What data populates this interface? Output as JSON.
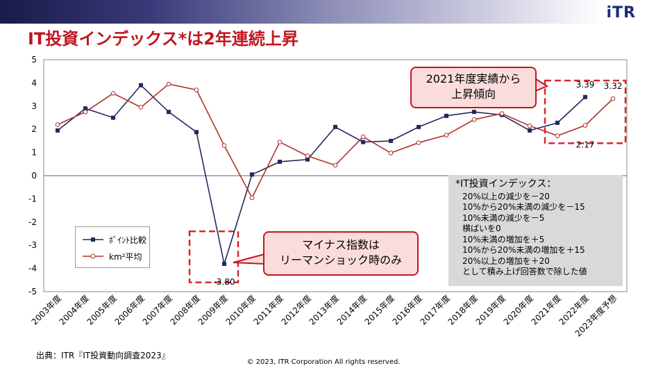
{
  "header": {
    "title": "IT投資インデックス*は2年連続上昇",
    "logo": "iTR"
  },
  "chart_data": {
    "type": "line",
    "categories": [
      "2003年度",
      "2004年度",
      "2005年度",
      "2006年度",
      "2007年度",
      "2008年度",
      "2009年度",
      "2010年度",
      "2011年度",
      "2012年度",
      "2013年度",
      "2014年度",
      "2015年度",
      "2016年度",
      "2017年度",
      "2018年度",
      "2019年度",
      "2020年度",
      "2021年度",
      "2022年度",
      "2023年度予想"
    ],
    "ylim": [
      -5,
      5
    ],
    "yticks": [
      5,
      4,
      3,
      2,
      1,
      0,
      -1,
      -2,
      -3,
      -4,
      -5
    ],
    "series": [
      {
        "name": "ﾎﾟｲﾝﾄ比較",
        "color": "#1f2a5e",
        "marker": "square",
        "values": [
          1.95,
          2.9,
          2.5,
          3.9,
          2.75,
          1.88,
          -3.8,
          0.05,
          0.6,
          0.7,
          2.1,
          1.45,
          1.5,
          2.1,
          2.58,
          2.75,
          2.62,
          1.95,
          2.28,
          3.39,
          null
        ]
      },
      {
        "name": "km²平均",
        "color": "#b0302c",
        "marker": "circle",
        "values": [
          2.2,
          2.75,
          3.55,
          2.95,
          3.95,
          3.7,
          1.3,
          -0.95,
          1.45,
          0.85,
          0.45,
          1.68,
          0.98,
          1.42,
          1.75,
          2.42,
          2.68,
          2.15,
          1.72,
          2.17,
          3.32
        ]
      }
    ],
    "data_labels": [
      {
        "text": "3.39",
        "series": 0,
        "index": 19
      },
      {
        "text": "3.32",
        "series": 1,
        "index": 20
      },
      {
        "text": "2.17",
        "series": 1,
        "index": 19
      },
      {
        "text": "-3.80",
        "series": 0,
        "index": 6
      }
    ],
    "grid": false
  },
  "callouts": {
    "rise_line1": "2021年度実績から",
    "rise_line2": "上昇傾向",
    "minus_line1": "マイナス指数は",
    "minus_line2": "リーマンショック時のみ"
  },
  "legend": {
    "item1": "ﾎﾟｲﾝﾄ比較",
    "item2": "km²平均"
  },
  "note": {
    "heading": "*IT投資インデックス：",
    "lines": [
      "20%以上の減少を－20",
      "10%から20%未満の減少を－15",
      "10%未満の減少を－5",
      "横ばいを0",
      "10%未満の増加を＋5",
      "10%から20%未満の増加を＋15",
      "20%以上の増加を＋20",
      "として積み上げ回答数で除した値"
    ]
  },
  "footer": {
    "source": "出典：ITR『IT投資動向調査2023』",
    "copyright": "© 2023, ITR Corporation  All rights reserved."
  }
}
